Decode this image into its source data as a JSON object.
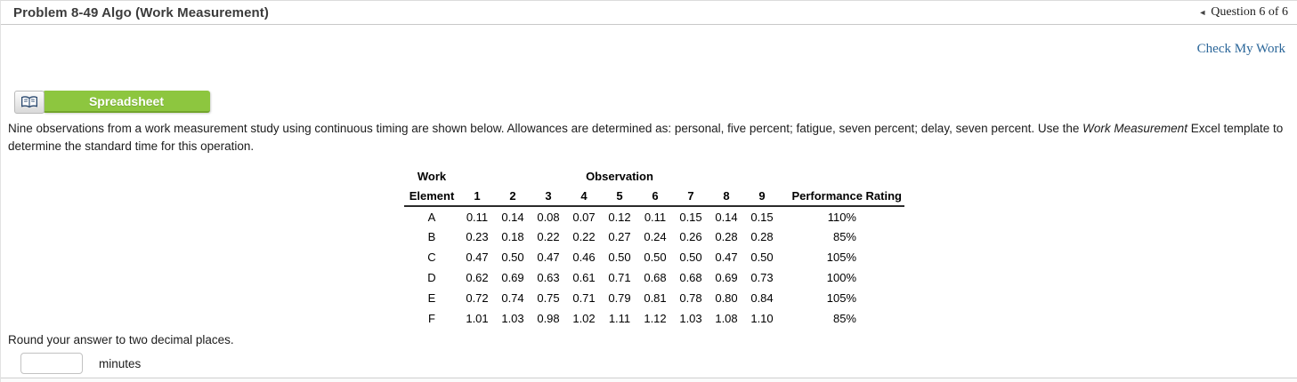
{
  "header": {
    "title": "Problem 8-49 Algo (Work Measurement)",
    "nav_arrow": "◄",
    "question_nav": "Question 6 of 6"
  },
  "toolbar": {
    "check_my_work_label": "Check My Work",
    "spreadsheet_button_label": "Spreadsheet",
    "icon": "open-book-icon"
  },
  "problem": {
    "part1": "Nine observations from a work measurement study using continuous timing are shown below. Allowances are determined as: personal, five percent; fatigue, seven percent; delay, seven percent. Use the ",
    "italic": "Work Measurement",
    "part2": " Excel template to determine the standard time for this operation."
  },
  "table": {
    "group_headers": {
      "work": "Work",
      "observation": "Observation"
    },
    "columns": [
      "Element",
      "1",
      "2",
      "3",
      "4",
      "5",
      "6",
      "7",
      "8",
      "9",
      "Performance Rating"
    ],
    "rows": [
      {
        "element": "A",
        "obs": [
          "0.11",
          "0.14",
          "0.08",
          "0.07",
          "0.12",
          "0.11",
          "0.15",
          "0.14",
          "0.15"
        ],
        "rating": "110%"
      },
      {
        "element": "B",
        "obs": [
          "0.23",
          "0.18",
          "0.22",
          "0.22",
          "0.27",
          "0.24",
          "0.26",
          "0.28",
          "0.28"
        ],
        "rating": "85%"
      },
      {
        "element": "C",
        "obs": [
          "0.47",
          "0.50",
          "0.47",
          "0.46",
          "0.50",
          "0.50",
          "0.50",
          "0.47",
          "0.50"
        ],
        "rating": "105%"
      },
      {
        "element": "D",
        "obs": [
          "0.62",
          "0.69",
          "0.63",
          "0.61",
          "0.71",
          "0.68",
          "0.68",
          "0.69",
          "0.73"
        ],
        "rating": "100%"
      },
      {
        "element": "E",
        "obs": [
          "0.72",
          "0.74",
          "0.75",
          "0.71",
          "0.79",
          "0.81",
          "0.78",
          "0.80",
          "0.84"
        ],
        "rating": "105%"
      },
      {
        "element": "F",
        "obs": [
          "1.01",
          "1.03",
          "0.98",
          "1.02",
          "1.11",
          "1.12",
          "1.03",
          "1.08",
          "1.10"
        ],
        "rating": "85%"
      }
    ]
  },
  "answer": {
    "instruction": "Round your answer to two decimal places.",
    "input_value": "",
    "unit_label": "minutes"
  },
  "colors": {
    "accent_green": "#8dc63f",
    "accent_green_dark": "#73a52c",
    "link_blue": "#2b6699",
    "title_grey": "#3b3b3b"
  }
}
